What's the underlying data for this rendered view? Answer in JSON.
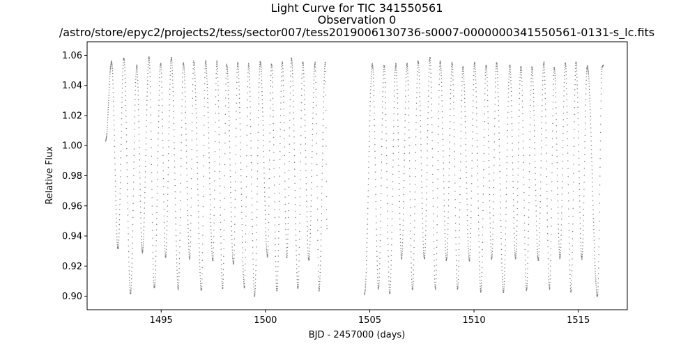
{
  "chart_data": {
    "type": "scatter",
    "title_lines": [
      "Light Curve for TIC 341550561",
      "Observation 0",
      "/astro/store/epyc2/projects2/tess/sector007/tess2019006130736-s0007-0000000341550561-0131-s_lc.fits"
    ],
    "xlabel": "BJD - 2457000 (days)",
    "ylabel": "Relative Flux",
    "xlim": [
      1491.45,
      1517.35
    ],
    "ylim": [
      0.891,
      1.069
    ],
    "xticks": [
      1495,
      1500,
      1505,
      1510,
      1515
    ],
    "yticks": [
      0.9,
      0.92,
      0.94,
      0.96,
      0.98,
      1.0,
      1.02,
      1.04,
      1.06
    ],
    "ytick_labels": [
      "0.90",
      "0.92",
      "0.94",
      "0.96",
      "0.98",
      "1.00",
      "1.02",
      "1.04",
      "1.06"
    ],
    "marker_color": "#808080",
    "series": [
      {
        "segments": [
          {
            "x_start": 1492.34,
            "x_end": 1502.95,
            "start_flux": 1.003,
            "end_flux": 0.945,
            "maxima": [
              [
                1492.62,
                1.056
              ],
              [
                1493.21,
                1.058
              ],
              [
                1493.83,
                1.053
              ],
              [
                1494.42,
                1.059
              ],
              [
                1494.98,
                1.055
              ],
              [
                1495.49,
                1.058
              ],
              [
                1496.07,
                1.055
              ],
              [
                1496.56,
                1.056
              ],
              [
                1497.13,
                1.056
              ],
              [
                1497.67,
                1.056
              ],
              [
                1498.14,
                1.054
              ],
              [
                1498.67,
                1.055
              ],
              [
                1499.19,
                1.054
              ],
              [
                1499.75,
                1.056
              ],
              [
                1500.29,
                1.054
              ],
              [
                1500.81,
                1.055
              ],
              [
                1501.25,
                1.058
              ],
              [
                1501.79,
                1.056
              ],
              [
                1502.38,
                1.055
              ],
              [
                1502.87,
                1.055
              ]
            ],
            "minima": [
              [
                1492.93,
                0.931
              ],
              [
                1493.53,
                0.902
              ],
              [
                1494.1,
                0.929
              ],
              [
                1494.67,
                0.905
              ],
              [
                1495.21,
                0.926
              ],
              [
                1495.82,
                0.905
              ],
              [
                1496.37,
                0.925
              ],
              [
                1496.93,
                0.904
              ],
              [
                1497.48,
                0.924
              ],
              [
                1497.95,
                0.905
              ],
              [
                1498.47,
                0.921
              ],
              [
                1498.99,
                0.906
              ],
              [
                1499.48,
                0.9
              ],
              [
                1500.1,
                0.926
              ],
              [
                1500.55,
                0.904
              ],
              [
                1501.03,
                0.926
              ],
              [
                1501.56,
                0.905
              ],
              [
                1502.08,
                0.924
              ],
              [
                1502.57,
                0.904
              ]
            ]
          },
          {
            "x_start": 1504.75,
            "x_end": 1516.2,
            "start_flux": 0.901,
            "end_flux": 1.053,
            "maxima": [
              [
                1505.13,
                1.054
              ],
              [
                1505.69,
                1.053
              ],
              [
                1506.25,
                1.054
              ],
              [
                1506.79,
                1.055
              ],
              [
                1507.32,
                1.056
              ],
              [
                1507.89,
                1.058
              ],
              [
                1508.38,
                1.056
              ],
              [
                1508.95,
                1.055
              ],
              [
                1509.47,
                1.052
              ],
              [
                1510.03,
                1.055
              ],
              [
                1510.58,
                1.054
              ],
              [
                1511.08,
                1.055
              ],
              [
                1511.72,
                1.053
              ],
              [
                1512.25,
                1.053
              ],
              [
                1512.78,
                1.052
              ],
              [
                1513.35,
                1.055
              ],
              [
                1513.85,
                1.052
              ],
              [
                1514.38,
                1.055
              ],
              [
                1514.89,
                1.055
              ],
              [
                1515.43,
                1.053
              ],
              [
                1516.15,
                1.053
              ]
            ],
            "minima": [
              [
                1505.42,
                0.905
              ],
              [
                1505.96,
                0.902
              ],
              [
                1506.53,
                0.925
              ],
              [
                1507.05,
                0.904
              ],
              [
                1507.62,
                0.925
              ],
              [
                1508.15,
                0.905
              ],
              [
                1508.68,
                0.924
              ],
              [
                1509.21,
                0.905
              ],
              [
                1509.78,
                0.924
              ],
              [
                1510.33,
                0.903
              ],
              [
                1510.85,
                0.925
              ],
              [
                1511.41,
                0.903
              ],
              [
                1511.99,
                0.925
              ],
              [
                1512.52,
                0.904
              ],
              [
                1513.08,
                0.924
              ],
              [
                1513.62,
                0.905
              ],
              [
                1514.12,
                0.925
              ],
              [
                1514.65,
                0.903
              ],
              [
                1515.17,
                0.925
              ],
              [
                1515.92,
                0.9
              ]
            ]
          }
        ]
      }
    ]
  }
}
